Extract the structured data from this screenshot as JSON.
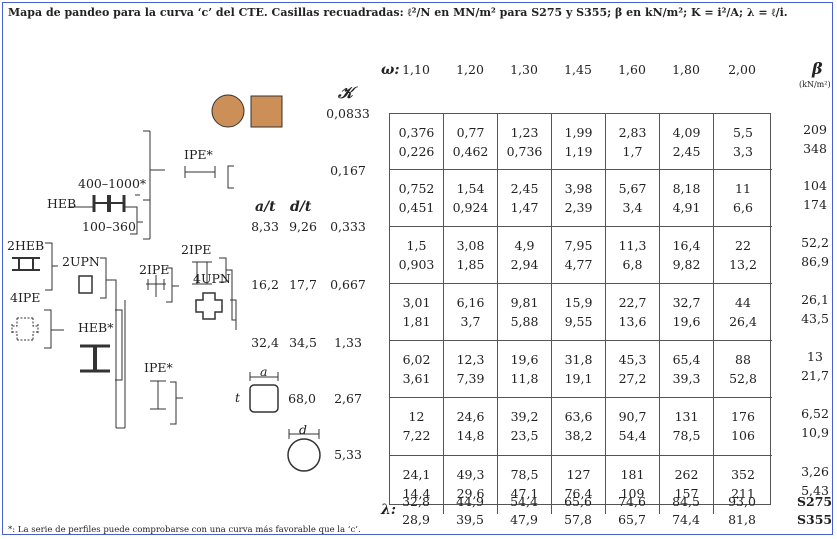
{
  "title": "Mapa de pandeo para la curva ‘c’ del CTE. Casillas recuadradas: ℓ²/N en MN/m² para S275 y S355; β en kN/m²; K = i²/A; λ = ℓ/i.",
  "footnote": "*: La serie de perfiles puede comprobarse con una curva más favorable que la ‘c’.",
  "omega_symbol": "ω:",
  "omega": [
    "1,10",
    "1,20",
    "1,30",
    "1,45",
    "1,60",
    "1,80",
    "2,00"
  ],
  "beta_symbol": "β",
  "beta_unit": "(kN/m²)",
  "kappa_symbol": "𝒦",
  "kappa": [
    "0,0833",
    "0,167",
    "0,333",
    "0,667",
    "1,33",
    "2,67",
    "5,33"
  ],
  "at_label": "a/t",
  "dt_label": "d/t",
  "at_values": [
    "8,33",
    "16,2",
    "32,4",
    "68,0"
  ],
  "dt_values": [
    "9,26",
    "17,7",
    "34,5"
  ],
  "rows": [
    {
      "top": [
        "0,376",
        "0,77",
        "1,23",
        "1,99",
        "2,83",
        "4,09",
        "5,5"
      ],
      "bot": [
        "0,226",
        "0,462",
        "0,736",
        "1,19",
        "1,7",
        "2,45",
        "3,3"
      ],
      "beta": [
        "209",
        "348"
      ]
    },
    {
      "top": [
        "0,752",
        "1,54",
        "2,45",
        "3,98",
        "5,67",
        "8,18",
        "11"
      ],
      "bot": [
        "0,451",
        "0,924",
        "1,47",
        "2,39",
        "3,4",
        "4,91",
        "6,6"
      ],
      "beta": [
        "104",
        "174"
      ]
    },
    {
      "top": [
        "1,5",
        "3,08",
        "4,9",
        "7,95",
        "11,3",
        "16,4",
        "22"
      ],
      "bot": [
        "0,903",
        "1,85",
        "2,94",
        "4,77",
        "6,8",
        "9,82",
        "13,2"
      ],
      "beta": [
        "52,2",
        "86,9"
      ]
    },
    {
      "top": [
        "3,01",
        "6,16",
        "9,81",
        "15,9",
        "22,7",
        "32,7",
        "44"
      ],
      "bot": [
        "1,81",
        "3,7",
        "5,88",
        "9,55",
        "13,6",
        "19,6",
        "26,4"
      ],
      "beta": [
        "26,1",
        "43,5"
      ]
    },
    {
      "top": [
        "6,02",
        "12,3",
        "19,6",
        "31,8",
        "45,3",
        "65,4",
        "88"
      ],
      "bot": [
        "3,61",
        "7,39",
        "11,8",
        "19,1",
        "27,2",
        "39,3",
        "52,8"
      ],
      "beta": [
        "13",
        "21,7"
      ]
    },
    {
      "top": [
        "12",
        "24,6",
        "39,2",
        "63,6",
        "90,7",
        "131",
        "176"
      ],
      "bot": [
        "7,22",
        "14,8",
        "23,5",
        "38,2",
        "54,4",
        "78,5",
        "106"
      ],
      "beta": [
        "6,52",
        "10,9"
      ]
    },
    {
      "top": [
        "24,1",
        "49,3",
        "78,5",
        "127",
        "181",
        "262",
        "352"
      ],
      "bot": [
        "14,4",
        "29,6",
        "47,1",
        "76,4",
        "109",
        "157",
        "211"
      ],
      "beta": [
        "3,26",
        "5,43"
      ]
    }
  ],
  "lambda_symbol": "λ:",
  "lambda_s275": [
    "32,8",
    "44,9",
    "54,4",
    "65,6",
    "74,6",
    "84,5",
    "93,0"
  ],
  "lambda_s355": [
    "28,9",
    "39,5",
    "47,9",
    "57,8",
    "65,7",
    "74,4",
    "81,8"
  ],
  "steel_s275": "S275",
  "steel_s355": "S355",
  "labels": {
    "ipe_star_top": "IPE*",
    "heb_range_top": "400–1000*",
    "heb": "HEB",
    "heb_range_bottom": "100–360",
    "two_heb": "2HEB",
    "two_upn": "2UPN",
    "two_ipe_a": "2IPE",
    "two_ipe_b": "2IPE",
    "four_upn": "4UPN",
    "four_ipe": "4IPE",
    "heb_star": "HEB*",
    "ipe_star_bottom": "IPE*",
    "dim_a": "a",
    "dim_t": "t",
    "dim_d": "d"
  },
  "colors": {
    "frame": "#4a5fd0",
    "swatch": "#cd8f58"
  }
}
